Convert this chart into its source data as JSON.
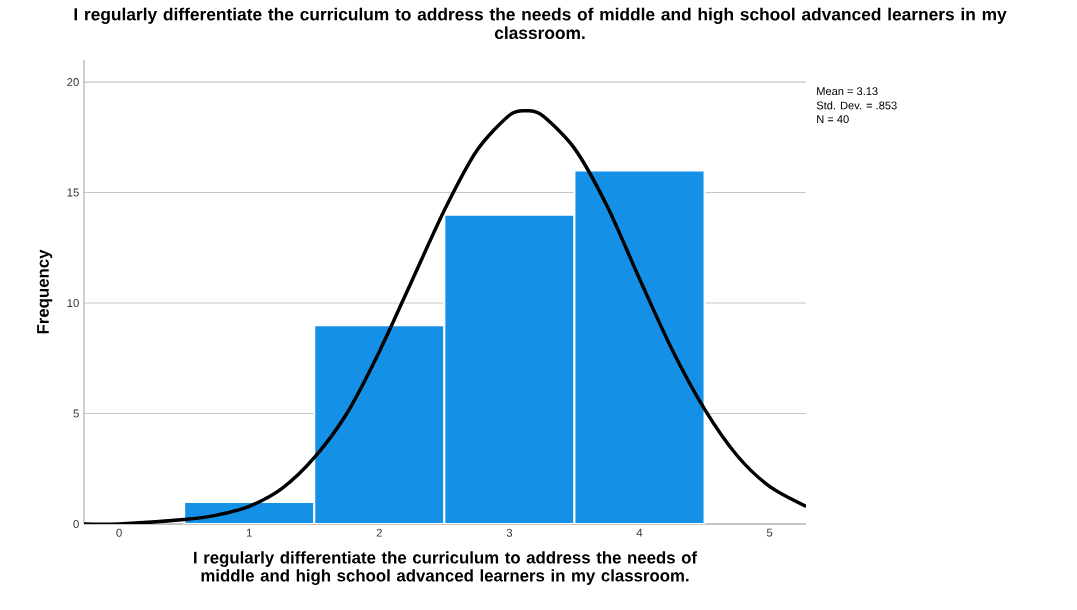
{
  "chart_data": {
    "type": "histogram",
    "title": "I regularly differentiate the curriculum to address the needs of middle and high school advanced learners in my classroom.",
    "xlabel": "I regularly differentiate the curriculum to address the needs of middle and high school advanced learners in my classroom.",
    "ylabel": "Frequency",
    "bins": [
      0.5,
      1.5,
      2.5,
      3.5,
      4.5
    ],
    "values": [
      1,
      9,
      14,
      16
    ],
    "color": "#1490e6",
    "series": [
      {
        "type": "line",
        "color": "#000000",
        "x": [
          -0.27,
          0,
          0.5,
          0.75,
          1,
          1.25,
          1.5,
          1.75,
          2,
          2.25,
          2.5,
          2.75,
          3,
          3.13,
          3.25,
          3.5,
          3.75,
          4,
          4.25,
          4.5,
          4.75,
          5,
          5.28
        ],
        "values": [
          0.0,
          0.0,
          0.2,
          0.4,
          0.8,
          1.6,
          3.0,
          5.0,
          7.8,
          11.0,
          14.2,
          16.9,
          18.5,
          18.7,
          18.5,
          17.0,
          14.4,
          11.1,
          7.9,
          5.2,
          3.1,
          1.7,
          0.8
        ]
      }
    ],
    "xlim": [
      -0.27,
      5.28
    ],
    "ylim": [
      0,
      21
    ],
    "xticks": [
      0,
      1,
      2,
      3,
      4,
      5
    ],
    "yticks": [
      0,
      5,
      10,
      15,
      20
    ],
    "grid": "y",
    "annotations": [
      "Mean = 3.13",
      "Std. Dev. = .853",
      "N = 40"
    ]
  }
}
